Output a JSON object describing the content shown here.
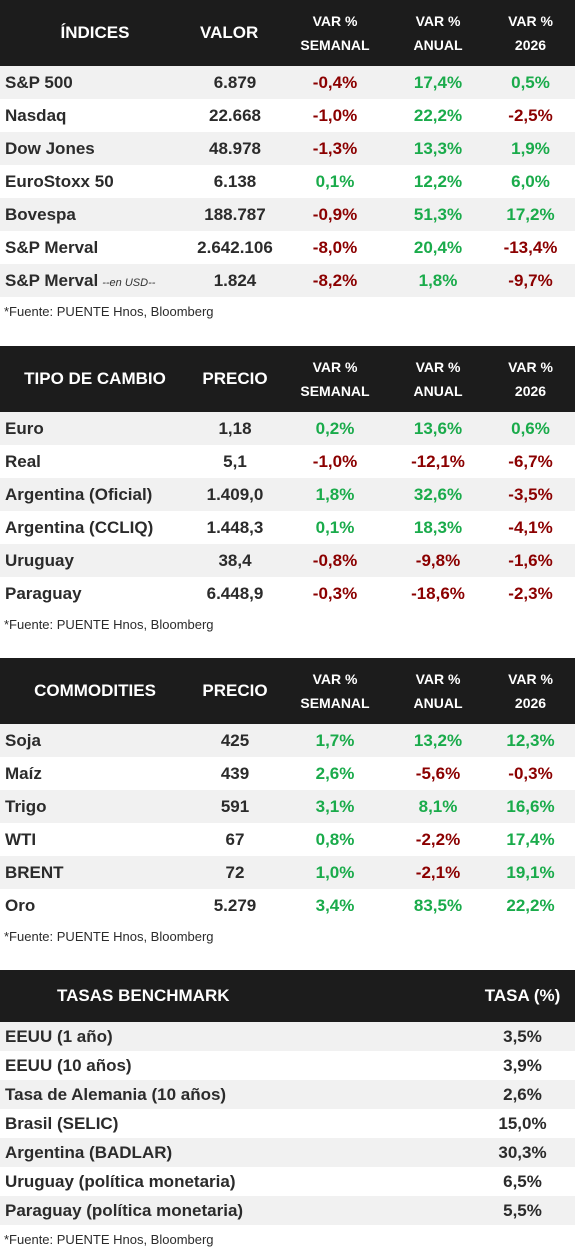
{
  "colors": {
    "header_bg": "#1c1c1c",
    "positive": "#1aab4b",
    "negative": "#8b0000",
    "row_alt": "#f1f1f1"
  },
  "indices": {
    "headers": [
      "ÍNDICES",
      "VALOR",
      "VAR %\nSEMANAL",
      "VAR %\nANUAL",
      "VAR %\n2026"
    ],
    "h": {
      "c1": "ÍNDICES",
      "c2": "VALOR",
      "c3a": "VAR %",
      "c3b": "SEMANAL",
      "c4a": "VAR %",
      "c4b": "ANUAL",
      "c5a": "VAR %",
      "c5b": "2026"
    },
    "rows": [
      {
        "name": "S&P 500",
        "value": "6.879",
        "w": "-0,4%",
        "a": "17,4%",
        "y": "0,5%"
      },
      {
        "name": "Nasdaq",
        "value": "22.668",
        "w": "-1,0%",
        "a": "22,2%",
        "y": "-2,5%"
      },
      {
        "name": "Dow Jones",
        "value": "48.978",
        "w": "-1,3%",
        "a": "13,3%",
        "y": "1,9%"
      },
      {
        "name": "EuroStoxx 50",
        "value": "6.138",
        "w": "0,1%",
        "a": "12,2%",
        "y": "6,0%"
      },
      {
        "name": "Bovespa",
        "value": "188.787",
        "w": "-0,9%",
        "a": "51,3%",
        "y": "17,2%"
      },
      {
        "name": "S&P Merval",
        "value": "2.642.106",
        "w": "-8,0%",
        "a": "20,4%",
        "y": "-13,4%"
      },
      {
        "name": "S&P Merval",
        "note": "--en USD--",
        "value": "1.824",
        "w": "-8,2%",
        "a": "1,8%",
        "y": "-9,7%"
      }
    ],
    "source": "*Fuente: PUENTE Hnos, Bloomberg"
  },
  "fx": {
    "h": {
      "c1": "TIPO DE CAMBIO",
      "c2": "PRECIO",
      "c3a": "VAR %",
      "c3b": "SEMANAL",
      "c4a": "VAR %",
      "c4b": "ANUAL",
      "c5a": "VAR %",
      "c5b": "2026"
    },
    "rows": [
      {
        "name": "Euro",
        "value": "1,18",
        "w": "0,2%",
        "a": "13,6%",
        "y": "0,6%"
      },
      {
        "name": "Real",
        "value": "5,1",
        "w": "-1,0%",
        "a": "-12,1%",
        "y": "-6,7%"
      },
      {
        "name": "Argentina (Oficial)",
        "value": "1.409,0",
        "w": "1,8%",
        "a": "32,6%",
        "y": "-3,5%"
      },
      {
        "name": "Argentina (CCLIQ)",
        "value": "1.448,3",
        "w": "0,1%",
        "a": "18,3%",
        "y": "-4,1%"
      },
      {
        "name": "Uruguay",
        "value": "38,4",
        "w": "-0,8%",
        "a": "-9,8%",
        "y": "-1,6%"
      },
      {
        "name": "Paraguay",
        "value": "6.448,9",
        "w": "-0,3%",
        "a": "-18,6%",
        "y": "-2,3%"
      }
    ],
    "source": "*Fuente: PUENTE Hnos, Bloomberg"
  },
  "commodities": {
    "h": {
      "c1": "COMMODITIES",
      "c2": "PRECIO",
      "c3a": "VAR %",
      "c3b": "SEMANAL",
      "c4a": "VAR %",
      "c4b": "ANUAL",
      "c5a": "VAR %",
      "c5b": "2026"
    },
    "rows": [
      {
        "name": "Soja",
        "value": "425",
        "w": "1,7%",
        "a": "13,2%",
        "y": "12,3%"
      },
      {
        "name": "Maíz",
        "value": "439",
        "w": "2,6%",
        "a": "-5,6%",
        "y": "-0,3%"
      },
      {
        "name": "Trigo",
        "value": "591",
        "w": "3,1%",
        "a": "8,1%",
        "y": "16,6%"
      },
      {
        "name": "WTI",
        "value": "67",
        "w": "0,8%",
        "a": "-2,2%",
        "y": "17,4%"
      },
      {
        "name": "BRENT",
        "value": "72",
        "w": "1,0%",
        "a": "-2,1%",
        "y": "19,1%"
      },
      {
        "name": "Oro",
        "value": "5.279",
        "w": "3,4%",
        "a": "83,5%",
        "y": "22,2%"
      }
    ],
    "source": "*Fuente: PUENTE Hnos, Bloomberg"
  },
  "rates": {
    "h": {
      "c1": "TASAS BENCHMARK",
      "c2": "TASA (%)"
    },
    "rows": [
      {
        "name": "EEUU (1 año)",
        "value": "3,5%"
      },
      {
        "name": "EEUU (10 años)",
        "value": "3,9%"
      },
      {
        "name": "Tasa de Alemania (10 años)",
        "value": "2,6%"
      },
      {
        "name": "Brasil (SELIC)",
        "value": "15,0%"
      },
      {
        "name": "Argentina (BADLAR)",
        "value": "30,3%"
      },
      {
        "name": "Uruguay (política monetaria)",
        "value": "6,5%"
      },
      {
        "name": "Paraguay (política monetaria)",
        "value": "5,5%"
      }
    ],
    "source": "*Fuente: PUENTE Hnos, Bloomberg"
  }
}
